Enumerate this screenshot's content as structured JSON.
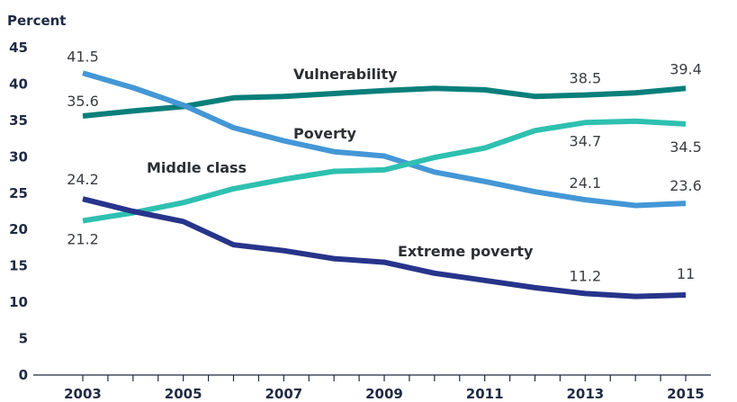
{
  "chart_data": {
    "type": "line",
    "y_unit_label": "Percent",
    "ylim": [
      0,
      45
    ],
    "y_ticks": [
      0,
      5,
      10,
      15,
      20,
      25,
      30,
      35,
      40,
      45
    ],
    "x": [
      2003,
      2004,
      2005,
      2006,
      2007,
      2008,
      2009,
      2010,
      2011,
      2012,
      2013,
      2014,
      2015
    ],
    "x_tick_labels": [
      "2003",
      "2005",
      "2007",
      "2009",
      "2011",
      "2013",
      "2015"
    ],
    "grid": false,
    "series": [
      {
        "name": "Vulnerability",
        "color": "#087f7a",
        "values": [
          35.6,
          36.3,
          36.9,
          38.1,
          38.3,
          38.7,
          39.1,
          39.4,
          39.2,
          38.3,
          38.5,
          38.8,
          39.4
        ]
      },
      {
        "name": "Poverty",
        "color": "#4497d6",
        "values": [
          41.5,
          39.5,
          37.1,
          34.0,
          32.2,
          30.7,
          30.1,
          27.9,
          26.6,
          25.2,
          24.1,
          23.3,
          23.6
        ]
      },
      {
        "name": "Middle class",
        "color": "#2ec0b0",
        "values": [
          21.2,
          22.3,
          23.7,
          25.6,
          26.9,
          28.0,
          28.2,
          29.9,
          31.2,
          33.6,
          34.7,
          34.9,
          34.5
        ]
      },
      {
        "name": "Extreme poverty",
        "color": "#27348b",
        "values": [
          24.2,
          22.5,
          21.1,
          17.9,
          17.1,
          16.0,
          15.5,
          14.0,
          13.0,
          12.0,
          11.2,
          10.8,
          11.0
        ]
      }
    ],
    "data_labels": [
      {
        "series": "Poverty",
        "x": 2003,
        "text": "41.5"
      },
      {
        "series": "Vulnerability",
        "x": 2003,
        "text": "35.6"
      },
      {
        "series": "Extreme poverty",
        "x": 2003,
        "text": "24.2"
      },
      {
        "series": "Middle class",
        "x": 2003,
        "text": "21.2"
      },
      {
        "series": "Vulnerability",
        "x": 2013,
        "text": "38.5"
      },
      {
        "series": "Vulnerability",
        "x": 2015,
        "text": "39.4"
      },
      {
        "series": "Middle class",
        "x": 2013,
        "text": "34.7"
      },
      {
        "series": "Middle class",
        "x": 2015,
        "text": "34.5"
      },
      {
        "series": "Poverty",
        "x": 2013,
        "text": "24.1"
      },
      {
        "series": "Poverty",
        "x": 2015,
        "text": "23.6"
      },
      {
        "series": "Extreme poverty",
        "x": 2013,
        "text": "11.2"
      },
      {
        "series": "Extreme poverty",
        "x": 2015,
        "text": "11"
      }
    ]
  }
}
